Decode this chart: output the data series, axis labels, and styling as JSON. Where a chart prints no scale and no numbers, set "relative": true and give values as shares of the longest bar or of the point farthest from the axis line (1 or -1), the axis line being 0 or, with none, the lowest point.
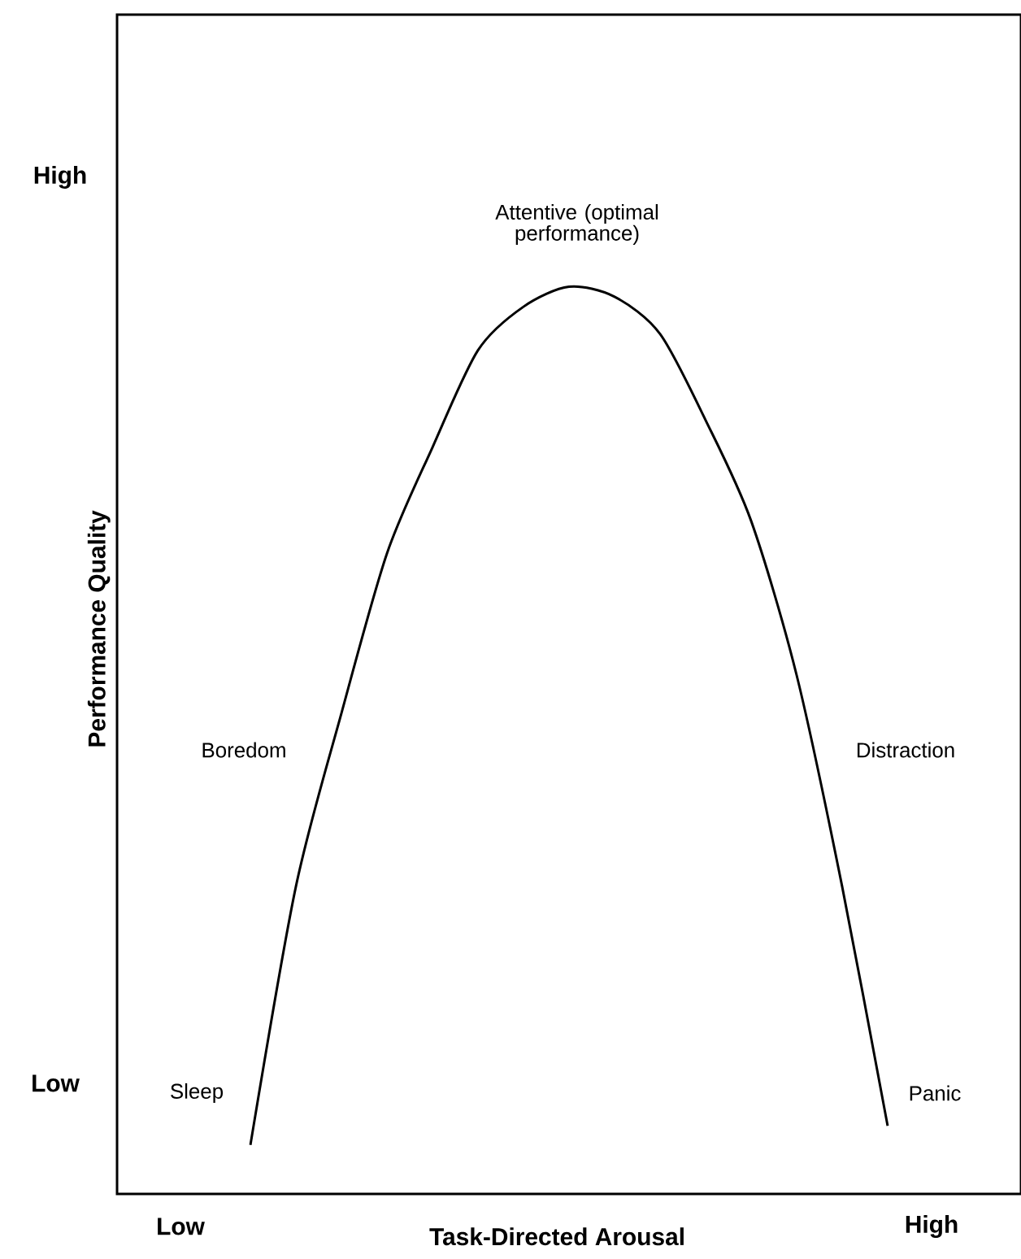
{
  "chart_data": {
    "type": "line",
    "relative": true,
    "xlabel": "Task-Directed Arousal",
    "ylabel": "Performance Quality",
    "categories": [
      null,
      null,
      null,
      null,
      null,
      null,
      null,
      null,
      null,
      null,
      null,
      null,
      null,
      null,
      null
    ],
    "values": [
      0.054,
      0.339,
      0.53,
      0.706,
      0.823,
      0.93,
      0.978,
      1,
      0.989,
      0.948,
      0.853,
      0.742,
      0.572,
      0.339,
      0.075
    ],
    "color": "#000000",
    "marker": "none",
    "line_style": "solid",
    "annotations": [
      "Attentive (optimal performance)",
      "Boredom",
      "Distraction",
      "Sleep",
      "Panic",
      "High",
      "Low",
      "Low",
      "High"
    ]
  }
}
